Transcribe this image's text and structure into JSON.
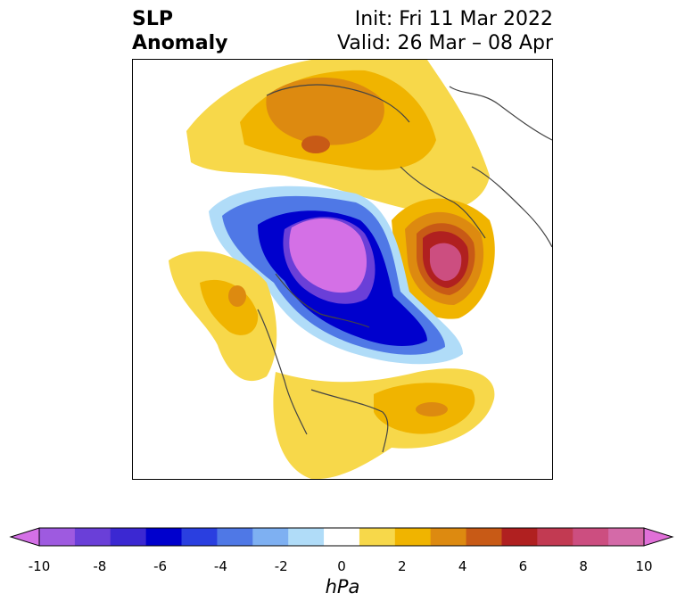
{
  "title": {
    "left_line1": "SLP",
    "left_line2": "Anomaly",
    "right_line1": "Init: Fri 11 Mar 2022",
    "right_line2": "Valid: 26 Mar – 08 Apr"
  },
  "colorbar": {
    "units": "hPa",
    "ticks": [
      "-10",
      "-8",
      "-6",
      "-4",
      "-2",
      "0",
      "2",
      "4",
      "6",
      "8",
      "10"
    ],
    "colors": [
      "#d470e6",
      "#9e5ae0",
      "#6a3fd8",
      "#3b28d2",
      "#0000cd",
      "#2a3fe0",
      "#4f78e6",
      "#7eb0f2",
      "#b0dcf8",
      "#ffffff",
      "#f7d84a",
      "#f0b400",
      "#dd8a10",
      "#c85a16",
      "#b02020",
      "#c23a52",
      "#cc4e80",
      "#d46aa8",
      "#e070d8"
    ],
    "extend": "both"
  }
}
